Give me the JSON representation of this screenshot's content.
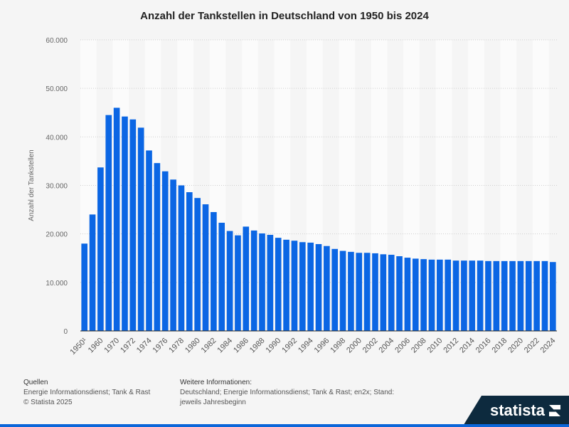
{
  "chart_data": {
    "type": "bar",
    "title": "Anzahl der Tankstellen in Deutschland von 1950 bis 2024",
    "ylabel": "Anzahl der Tankstellen",
    "xlabel": "",
    "ylim": [
      0,
      60000
    ],
    "yticks": [
      "0",
      "10.000",
      "20.000",
      "30.000",
      "40.000",
      "50.000",
      "60.000"
    ],
    "grid": true,
    "bar_color": "#0b66e4",
    "categories": [
      "1950¹",
      "1955",
      "1960",
      "1965",
      "1970",
      "1971",
      "1972",
      "1973",
      "1974",
      "1975",
      "1976",
      "1977",
      "1978",
      "1979",
      "1980",
      "1981",
      "1982",
      "1983",
      "1984",
      "1985",
      "1986",
      "1987",
      "1988",
      "1989",
      "1990",
      "1991",
      "1992",
      "1993",
      "1994",
      "1995",
      "1996",
      "1997",
      "1998",
      "1999",
      "2000",
      "2001",
      "2002",
      "2003",
      "2004",
      "2005",
      "2006",
      "2007",
      "2008",
      "2009",
      "2010",
      "2011",
      "2012",
      "2013",
      "2014",
      "2015",
      "2016",
      "2017",
      "2018",
      "2019",
      "2020",
      "2021",
      "2022",
      "2023",
      "2024"
    ],
    "tick_labels": [
      "1950¹",
      "1960",
      "1970",
      "1972",
      "1974",
      "1976",
      "1978",
      "1980",
      "1982",
      "1984",
      "1986",
      "1988",
      "1990",
      "1992",
      "1994",
      "1996",
      "1998",
      "2000",
      "2002",
      "2004",
      "2006",
      "2008",
      "2010",
      "2012",
      "2014",
      "2016",
      "2018",
      "2020",
      "2022",
      "2024"
    ],
    "values": [
      18000,
      24000,
      33700,
      44500,
      46000,
      44200,
      43600,
      41900,
      37200,
      34600,
      32900,
      31200,
      30000,
      28600,
      27400,
      26100,
      24500,
      22300,
      20600,
      19700,
      21500,
      20700,
      20100,
      19800,
      19200,
      18800,
      18600,
      18300,
      18200,
      17900,
      17500,
      16900,
      16500,
      16300,
      16100,
      16100,
      16000,
      15800,
      15700,
      15400,
      15100,
      14900,
      14800,
      14700,
      14700,
      14700,
      14500,
      14500,
      14500,
      14500,
      14400,
      14400,
      14400,
      14400,
      14400,
      14400,
      14400,
      14400,
      14200
    ]
  },
  "footer": {
    "sources_heading": "Quellen",
    "sources_text": "Energie Informationsdienst; Tank & Rast",
    "copyright": "© Statista 2025",
    "info_heading": "Weitere Informationen:",
    "info_line1": "Deutschland; Energie Informationsdienst; Tank & Rast; en2x; Stand:",
    "info_line2": "jeweils Jahresbeginn",
    "logo": "statista"
  }
}
